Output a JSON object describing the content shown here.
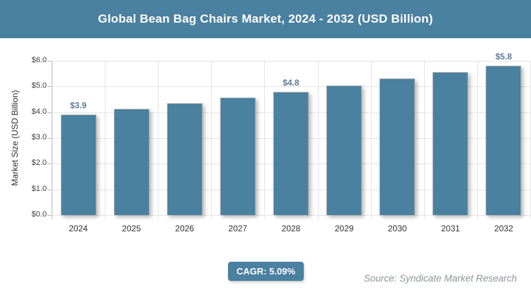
{
  "header": {
    "title": "Global Bean Bag Chairs Market, 2024 - 2032 (USD Billion)"
  },
  "chart_data": {
    "type": "bar",
    "title": "Global Bean Bag Chairs Market, 2024 - 2032 (USD Billion)",
    "categories": [
      "2024",
      "2025",
      "2026",
      "2027",
      "2028",
      "2029",
      "2030",
      "2031",
      "2032"
    ],
    "values": [
      3.9,
      4.13,
      4.35,
      4.57,
      4.8,
      5.05,
      5.3,
      5.55,
      5.8
    ],
    "value_labels": [
      "$3.9",
      "",
      "",
      "",
      "$4.8",
      "",
      "",
      "",
      "$5.8"
    ],
    "xlabel": "",
    "ylabel": "Market Size (USD Billion)",
    "ylim": [
      0,
      6
    ],
    "ytick_step": 1,
    "ytick_labels": [
      "$0.0",
      "$1.0",
      "$2.0",
      "$3.0",
      "$4.0",
      "$5.0",
      "$6.0"
    ],
    "grid": true,
    "legend": "none",
    "bar_color": "#4a80a0"
  },
  "footer": {
    "cagr_label": "CAGR: 5.09%",
    "source": "Source: Syndicate Market Research"
  },
  "colors": {
    "accent": "#4a80a0",
    "data_label": "#5e7b97",
    "grid": "#e4e4e4",
    "axis": "#b3b8bb",
    "source_text": "#8b959c"
  }
}
